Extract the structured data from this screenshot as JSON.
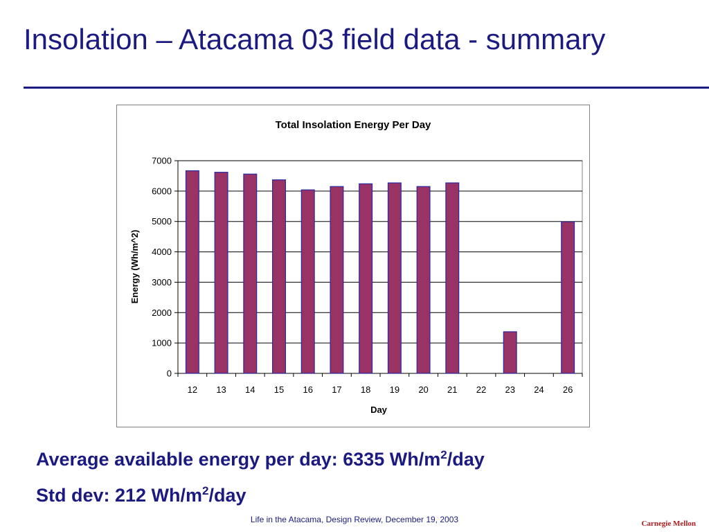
{
  "slide": {
    "title": "Insolation – Atacama 03 field data - summary",
    "stats": {
      "avg_prefix": "Average available energy per day: 6335 Wh/m",
      "avg_exp": "2",
      "avg_suffix": "/day",
      "std_prefix": "Std dev: 212 Wh/m",
      "std_exp": "2",
      "std_suffix": "/day"
    },
    "footer": "Life in the Atacama, Design Review, December 19, 2003",
    "logo": "Carnegie Mellon"
  },
  "colors": {
    "title": "#1a1a80",
    "bar_fill": "#993366",
    "bar_stroke": "#2a2aa0",
    "logo": "#b01c1c"
  },
  "chart_data": {
    "type": "bar",
    "title": "Total Insolation Energy Per Day",
    "xlabel": "Day",
    "ylabel": "Energy (Wh/m^2)",
    "categories": [
      "12",
      "13",
      "14",
      "15",
      "16",
      "17",
      "18",
      "19",
      "20",
      "21",
      "22",
      "23",
      "24",
      "26"
    ],
    "values": [
      6670,
      6620,
      6560,
      6370,
      6040,
      6150,
      6240,
      6270,
      6150,
      6270,
      0,
      1370,
      0,
      4990
    ],
    "ylim": [
      0,
      7000
    ],
    "yticks": [
      "0",
      "1000",
      "2000",
      "3000",
      "4000",
      "5000",
      "6000",
      "7000"
    ],
    "grid": true,
    "legend": "none"
  }
}
